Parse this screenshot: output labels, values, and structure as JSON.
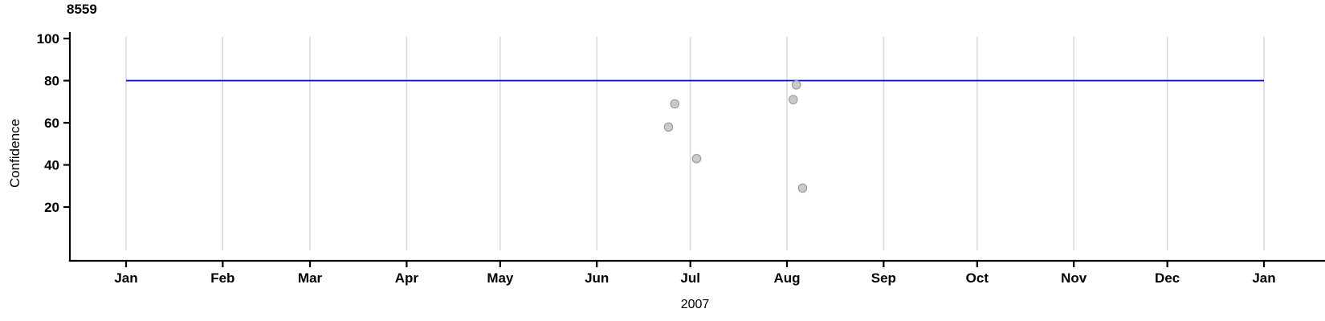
{
  "chart_data": {
    "type": "scatter",
    "title": "8559",
    "ylabel": "Confidence",
    "x_axis_year": "2007",
    "x_months": [
      "Jan",
      "Feb",
      "Mar",
      "Apr",
      "May",
      "Jun",
      "Jul",
      "Aug",
      "Sep",
      "Oct",
      "Nov",
      "Dec",
      "Jan"
    ],
    "yticks": [
      20,
      40,
      60,
      80,
      100
    ],
    "ylim": [
      -5,
      103
    ],
    "xlim": [
      "2007-01-01",
      "2008-01-01"
    ],
    "grid": "vertical-monthly-gridlines",
    "legend_position": "none",
    "ref_line": {
      "y": 80,
      "color": "#0000cc"
    },
    "points": [
      {
        "date": "2007-06-24",
        "confidence": 58
      },
      {
        "date": "2007-06-26",
        "confidence": 69
      },
      {
        "date": "2007-07-03",
        "confidence": 43
      },
      {
        "date": "2007-08-03",
        "confidence": 71
      },
      {
        "date": "2007-08-04",
        "confidence": 78
      },
      {
        "date": "2007-08-06",
        "confidence": 29
      }
    ],
    "colors": {
      "point_fill": "#cacaca",
      "point_stroke": "#9d9d9d",
      "gridline": "#d9d9d9",
      "axis": "#000000",
      "text": "#000000"
    }
  }
}
